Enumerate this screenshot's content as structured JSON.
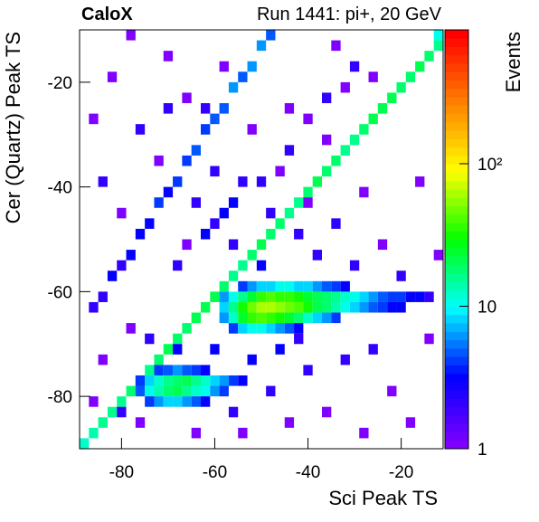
{
  "chart_data": {
    "type": "heatmap",
    "title": "CaloX",
    "subtitle": "Run 1441: pi+, 20 GeV",
    "x_label": "Sci Peak TS",
    "y_label": "Cer (Quartz) Peak TS",
    "colorbar_label": "Events",
    "xlim": [
      -89,
      -11
    ],
    "ylim": [
      -90,
      -10
    ],
    "xticks": [
      -80,
      -60,
      -40,
      -20
    ],
    "yticks": [
      -80,
      -60,
      -40,
      -20
    ],
    "zlim": [
      1,
      870
    ],
    "zticks": [
      1,
      10,
      {
        "value": 100,
        "label": "10²"
      }
    ],
    "z_log": true,
    "bin_width": 2,
    "palette": [
      "#7f00ff",
      "#0000ff",
      "#00ffff",
      "#00ff00",
      "#ffff00",
      "#ff8000",
      "#ff0000"
    ],
    "cells": [
      [
        -89,
        -90,
        12
      ],
      [
        -87,
        -88,
        14
      ],
      [
        -85,
        -86,
        15
      ],
      [
        -83,
        -84,
        16
      ],
      [
        -81,
        -82,
        15
      ],
      [
        -79,
        -80,
        18
      ],
      [
        -77,
        -78,
        17
      ],
      [
        -75,
        -76,
        16
      ],
      [
        -73,
        -74,
        18
      ],
      [
        -71,
        -72,
        20
      ],
      [
        -69,
        -70,
        19
      ],
      [
        -67,
        -68,
        18
      ],
      [
        -65,
        -66,
        20
      ],
      [
        -63,
        -64,
        22
      ],
      [
        -61,
        -62,
        20
      ],
      [
        -59,
        -60,
        18
      ],
      [
        -57,
        -58,
        17
      ],
      [
        -55,
        -56,
        16
      ],
      [
        -53,
        -54,
        18
      ],
      [
        -51,
        -52,
        20
      ],
      [
        -49,
        -50,
        19
      ],
      [
        -47,
        -48,
        18
      ],
      [
        -45,
        -46,
        17
      ],
      [
        -43,
        -44,
        16
      ],
      [
        -41,
        -42,
        18
      ],
      [
        -39,
        -40,
        20
      ],
      [
        -37,
        -38,
        19
      ],
      [
        -35,
        -36,
        18
      ],
      [
        -33,
        -34,
        17
      ],
      [
        -31,
        -32,
        16
      ],
      [
        -29,
        -30,
        18
      ],
      [
        -27,
        -28,
        20
      ],
      [
        -25,
        -26,
        22
      ],
      [
        -23,
        -24,
        20
      ],
      [
        -21,
        -22,
        19
      ],
      [
        -19,
        -20,
        18
      ],
      [
        -17,
        -18,
        20
      ],
      [
        -15,
        -16,
        18
      ],
      [
        -13,
        -14,
        16
      ],
      [
        -13,
        -12,
        10
      ],
      [
        -87,
        -64,
        2
      ],
      [
        -85,
        -62,
        2
      ],
      [
        -83,
        -58,
        3
      ],
      [
        -81,
        -56,
        2
      ],
      [
        -79,
        -54,
        3
      ],
      [
        -77,
        -50,
        3
      ],
      [
        -75,
        -48,
        3
      ],
      [
        -73,
        -44,
        4
      ],
      [
        -71,
        -42,
        3
      ],
      [
        -69,
        -40,
        4
      ],
      [
        -67,
        -36,
        4
      ],
      [
        -65,
        -34,
        5
      ],
      [
        -63,
        -30,
        4
      ],
      [
        -61,
        -28,
        5
      ],
      [
        -59,
        -26,
        5
      ],
      [
        -57,
        -22,
        6
      ],
      [
        -55,
        -20,
        5
      ],
      [
        -53,
        -18,
        6
      ],
      [
        -51,
        -14,
        6
      ],
      [
        -49,
        -12,
        5
      ],
      [
        -59,
        -62,
        6
      ],
      [
        -57,
        -62,
        10
      ],
      [
        -55,
        -62,
        15
      ],
      [
        -53,
        -62,
        25
      ],
      [
        -51,
        -62,
        35
      ],
      [
        -49,
        -62,
        40
      ],
      [
        -47,
        -62,
        38
      ],
      [
        -45,
        -62,
        35
      ],
      [
        -43,
        -62,
        30
      ],
      [
        -41,
        -62,
        25
      ],
      [
        -39,
        -62,
        20
      ],
      [
        -37,
        -62,
        18
      ],
      [
        -35,
        -62,
        15
      ],
      [
        -33,
        -62,
        12
      ],
      [
        -31,
        -62,
        10
      ],
      [
        -29,
        -62,
        8
      ],
      [
        -27,
        -62,
        6
      ],
      [
        -25,
        -62,
        5
      ],
      [
        -23,
        -62,
        4
      ],
      [
        -21,
        -62,
        4
      ],
      [
        -19,
        -62,
        3
      ],
      [
        -17,
        -62,
        3
      ],
      [
        -15,
        -62,
        2
      ],
      [
        -59,
        -64,
        8
      ],
      [
        -57,
        -64,
        15
      ],
      [
        -55,
        -64,
        30
      ],
      [
        -53,
        -64,
        45
      ],
      [
        -51,
        -64,
        60
      ],
      [
        -49,
        -64,
        65
      ],
      [
        -47,
        -64,
        55
      ],
      [
        -45,
        -64,
        50
      ],
      [
        -43,
        -64,
        40
      ],
      [
        -41,
        -64,
        30
      ],
      [
        -39,
        -64,
        22
      ],
      [
        -37,
        -64,
        18
      ],
      [
        -35,
        -64,
        14
      ],
      [
        -33,
        -64,
        10
      ],
      [
        -31,
        -64,
        8
      ],
      [
        -29,
        -64,
        6
      ],
      [
        -27,
        -64,
        5
      ],
      [
        -25,
        -64,
        4
      ],
      [
        -23,
        -64,
        3
      ],
      [
        -21,
        -64,
        3
      ],
      [
        -59,
        -66,
        6
      ],
      [
        -57,
        -66,
        12
      ],
      [
        -55,
        -66,
        25
      ],
      [
        -53,
        -66,
        35
      ],
      [
        -51,
        -66,
        40
      ],
      [
        -49,
        -66,
        38
      ],
      [
        -47,
        -66,
        30
      ],
      [
        -45,
        -66,
        25
      ],
      [
        -43,
        -66,
        18
      ],
      [
        -41,
        -66,
        12
      ],
      [
        -39,
        -66,
        8
      ],
      [
        -37,
        -66,
        6
      ],
      [
        -35,
        -66,
        4
      ],
      [
        -57,
        -68,
        4
      ],
      [
        -55,
        -68,
        8
      ],
      [
        -53,
        -68,
        10
      ],
      [
        -51,
        -68,
        10
      ],
      [
        -49,
        -68,
        8
      ],
      [
        -47,
        -68,
        6
      ],
      [
        -45,
        -68,
        5
      ],
      [
        -43,
        -68,
        3
      ],
      [
        -55,
        -60,
        4
      ],
      [
        -53,
        -60,
        6
      ],
      [
        -51,
        -60,
        8
      ],
      [
        -49,
        -60,
        8
      ],
      [
        -47,
        -60,
        10
      ],
      [
        -45,
        -60,
        10
      ],
      [
        -43,
        -60,
        8
      ],
      [
        -41,
        -60,
        8
      ],
      [
        -39,
        -60,
        6
      ],
      [
        -37,
        -60,
        5
      ],
      [
        -35,
        -60,
        4
      ],
      [
        -33,
        -60,
        3
      ],
      [
        -77,
        -78,
        4
      ],
      [
        -75,
        -78,
        8
      ],
      [
        -73,
        -78,
        12
      ],
      [
        -71,
        -78,
        15
      ],
      [
        -69,
        -78,
        18
      ],
      [
        -67,
        -78,
        20
      ],
      [
        -65,
        -78,
        15
      ],
      [
        -63,
        -78,
        12
      ],
      [
        -61,
        -78,
        8
      ],
      [
        -59,
        -78,
        6
      ],
      [
        -57,
        -78,
        4
      ],
      [
        -55,
        -78,
        3
      ],
      [
        -77,
        -80,
        5
      ],
      [
        -75,
        -80,
        10
      ],
      [
        -73,
        -80,
        14
      ],
      [
        -71,
        -80,
        18
      ],
      [
        -69,
        -80,
        20
      ],
      [
        -67,
        -80,
        16
      ],
      [
        -65,
        -80,
        12
      ],
      [
        -63,
        -80,
        10
      ],
      [
        -61,
        -80,
        6
      ],
      [
        -59,
        -80,
        4
      ],
      [
        -75,
        -82,
        4
      ],
      [
        -73,
        -82,
        6
      ],
      [
        -71,
        -82,
        8
      ],
      [
        -69,
        -82,
        8
      ],
      [
        -67,
        -82,
        6
      ],
      [
        -65,
        -82,
        5
      ],
      [
        -63,
        -82,
        3
      ],
      [
        -73,
        -76,
        4
      ],
      [
        -71,
        -76,
        5
      ],
      [
        -69,
        -76,
        6
      ],
      [
        -67,
        -76,
        5
      ],
      [
        -65,
        -76,
        4
      ],
      [
        -63,
        -76,
        3
      ],
      [
        -87,
        -28,
        1
      ],
      [
        -85,
        -40,
        2
      ],
      [
        -83,
        -20,
        1
      ],
      [
        -81,
        -46,
        1
      ],
      [
        -79,
        -12,
        1
      ],
      [
        -77,
        -30,
        2
      ],
      [
        -75,
        -70,
        2
      ],
      [
        -73,
        -36,
        1
      ],
      [
        -71,
        -16,
        1
      ],
      [
        -69,
        -56,
        2
      ],
      [
        -67,
        -24,
        1
      ],
      [
        -65,
        -44,
        2
      ],
      [
        -63,
        -50,
        3
      ],
      [
        -61,
        -38,
        2
      ],
      [
        -59,
        -46,
        3
      ],
      [
        -57,
        -52,
        2
      ],
      [
        -55,
        -40,
        2
      ],
      [
        -53,
        -30,
        1
      ],
      [
        -51,
        -56,
        3
      ],
      [
        -49,
        -46,
        2
      ],
      [
        -47,
        -38,
        1
      ],
      [
        -45,
        -26,
        1
      ],
      [
        -43,
        -50,
        2
      ],
      [
        -41,
        -44,
        1
      ],
      [
        -39,
        -54,
        2
      ],
      [
        -37,
        -32,
        1
      ],
      [
        -35,
        -48,
        2
      ],
      [
        -33,
        -22,
        1
      ],
      [
        -31,
        -56,
        2
      ],
      [
        -29,
        -42,
        1
      ],
      [
        -27,
        -72,
        2
      ],
      [
        -25,
        -52,
        1
      ],
      [
        -23,
        -80,
        1
      ],
      [
        -21,
        -58,
        2
      ],
      [
        -19,
        -86,
        1
      ],
      [
        -17,
        -40,
        1
      ],
      [
        -15,
        -70,
        1
      ],
      [
        -13,
        -54,
        1
      ],
      [
        -85,
        -74,
        1
      ],
      [
        -81,
        -84,
        2
      ],
      [
        -79,
        -68,
        1
      ],
      [
        -65,
        -88,
        1
      ],
      [
        -61,
        -72,
        3
      ],
      [
        -57,
        -84,
        2
      ],
      [
        -53,
        -74,
        3
      ],
      [
        -49,
        -80,
        2
      ],
      [
        -45,
        -86,
        1
      ],
      [
        -41,
        -76,
        2
      ],
      [
        -37,
        -84,
        1
      ],
      [
        -33,
        -74,
        2
      ],
      [
        -29,
        -88,
        1
      ],
      [
        -77,
        -86,
        1
      ],
      [
        -87,
        -82,
        1
      ],
      [
        -69,
        -72,
        3
      ],
      [
        -47,
        -72,
        3
      ],
      [
        -43,
        -70,
        2
      ],
      [
        -55,
        -88,
        1
      ],
      [
        -63,
        -26,
        2
      ],
      [
        -59,
        -18,
        1
      ],
      [
        -71,
        -26,
        2
      ],
      [
        -37,
        -24,
        2
      ],
      [
        -31,
        -18,
        2
      ],
      [
        -27,
        -20,
        1
      ],
      [
        -35,
        -14,
        1
      ],
      [
        -41,
        -28,
        1
      ],
      [
        -45,
        -34,
        2
      ],
      [
        -51,
        -40,
        2
      ],
      [
        -57,
        -44,
        3
      ],
      [
        -61,
        -48,
        2
      ],
      [
        -67,
        -52,
        1
      ]
    ]
  }
}
